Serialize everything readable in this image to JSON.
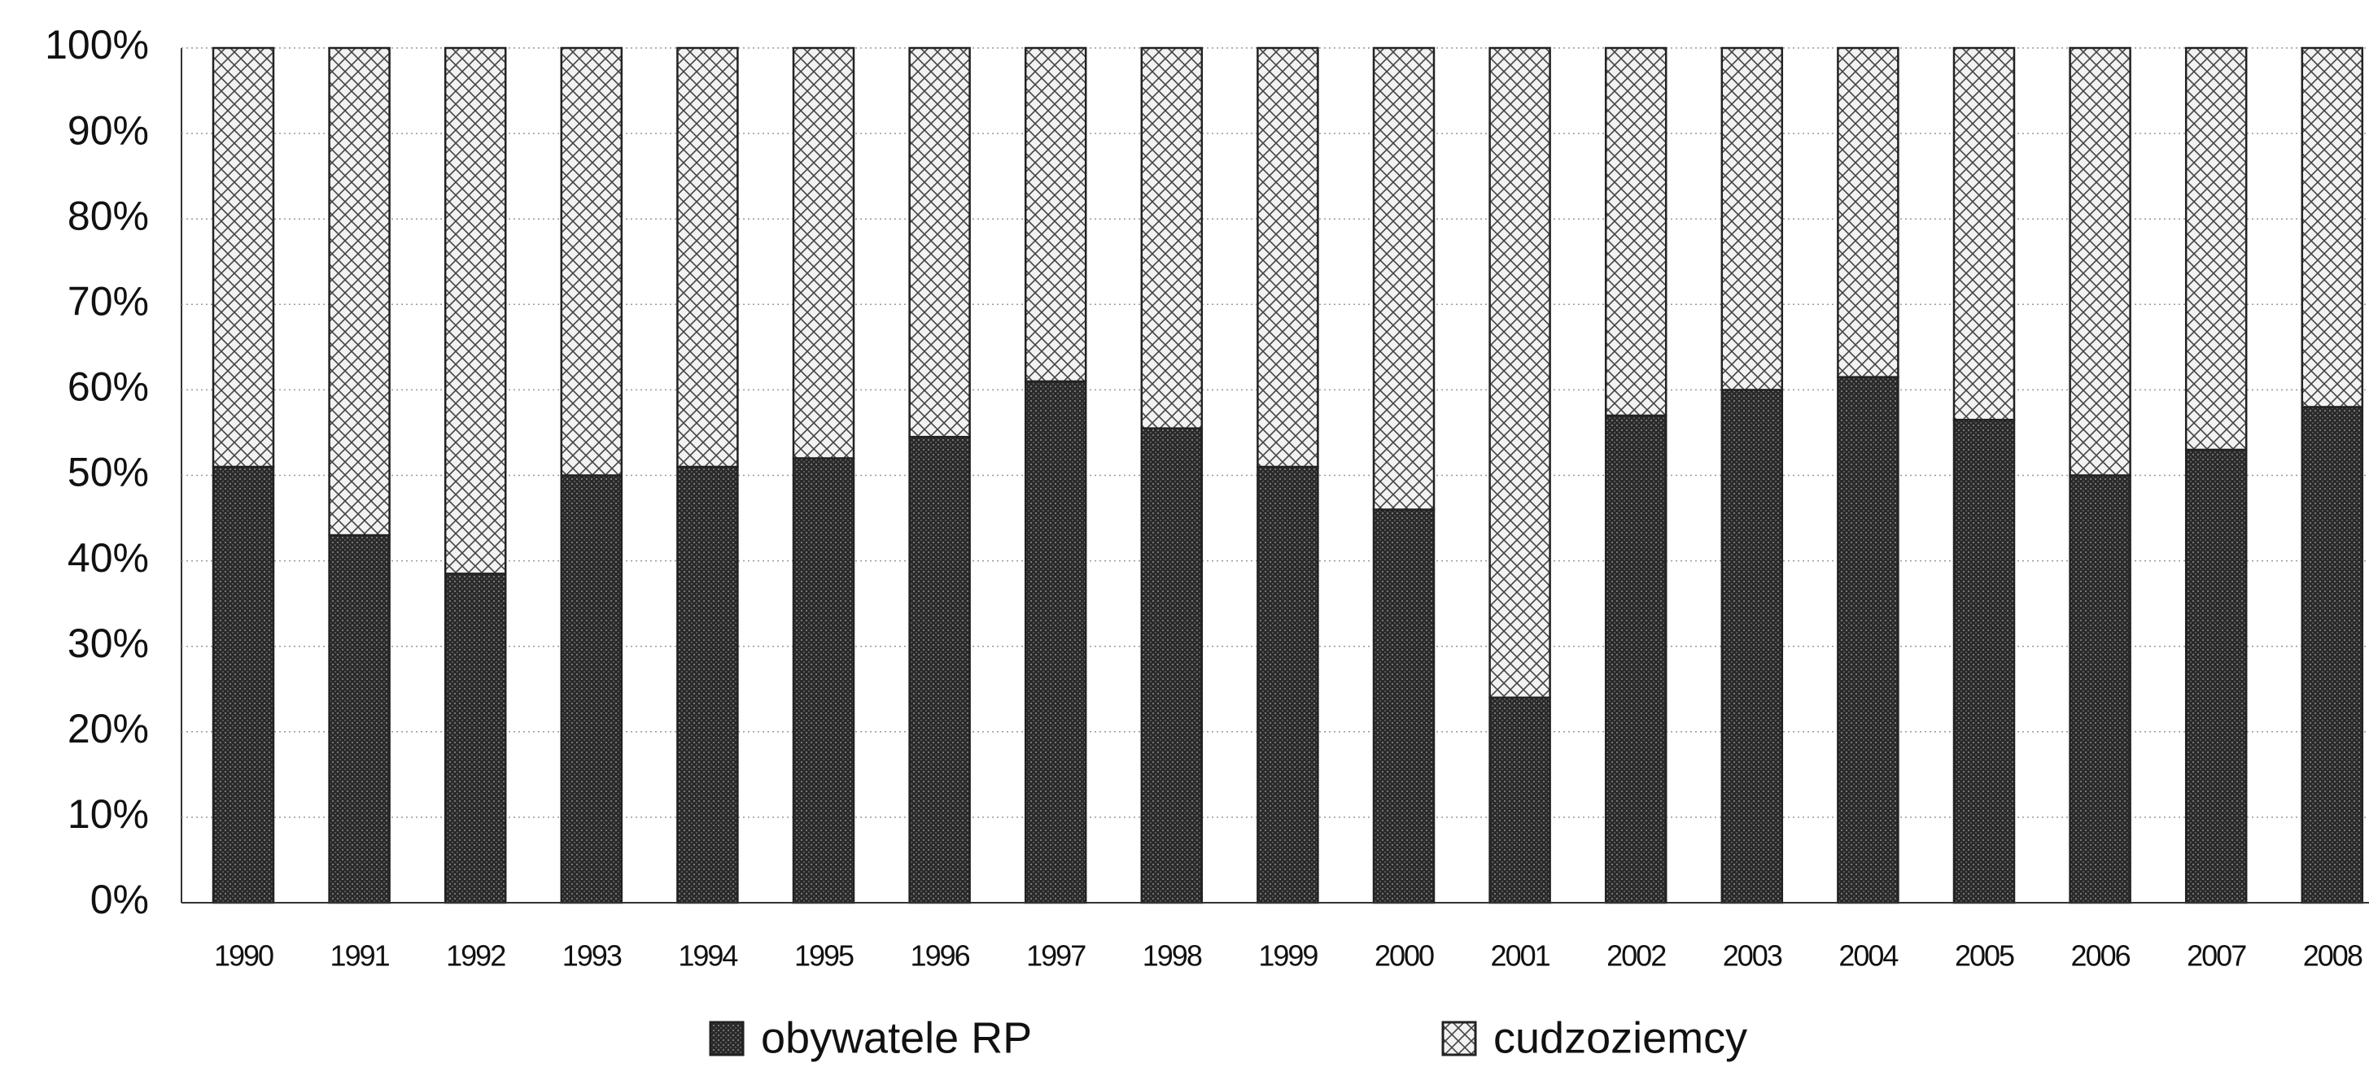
{
  "chart_data": {
    "type": "stacked_bar",
    "categories": [
      "1990",
      "1991",
      "1992",
      "1993",
      "1994",
      "1995",
      "1996",
      "1997",
      "1998",
      "1999",
      "2000",
      "2001",
      "2002",
      "2003",
      "2004",
      "2005",
      "2006",
      "2007",
      "2008"
    ],
    "series": [
      {
        "name": "obywatele RP",
        "color": "#2a2a2a",
        "values": [
          51,
          43,
          38.5,
          50,
          51,
          52,
          54.5,
          61,
          55.5,
          51,
          46,
          24,
          57,
          60,
          61.5,
          56.5,
          50,
          53,
          58
        ]
      },
      {
        "name": "cudzoziemcy",
        "color": "#f2f2f2",
        "values": [
          49,
          57,
          61.5,
          50,
          49,
          48,
          45.5,
          39,
          44.5,
          49,
          54,
          76,
          43,
          40,
          38.5,
          43.5,
          50,
          47,
          42
        ]
      }
    ],
    "ylim": [
      0,
      100
    ],
    "yticks": [
      {
        "value": 0,
        "label": "0%"
      },
      {
        "value": 10,
        "label": "10%"
      },
      {
        "value": 20,
        "label": "20%"
      },
      {
        "value": 30,
        "label": "30%"
      },
      {
        "value": 40,
        "label": "40%"
      },
      {
        "value": 50,
        "label": "50%"
      },
      {
        "value": 60,
        "label": "60%"
      },
      {
        "value": 70,
        "label": "70%"
      },
      {
        "value": 80,
        "label": "80%"
      },
      {
        "value": 90,
        "label": "90%"
      },
      {
        "value": 100,
        "label": "100%"
      }
    ],
    "grid": true
  }
}
